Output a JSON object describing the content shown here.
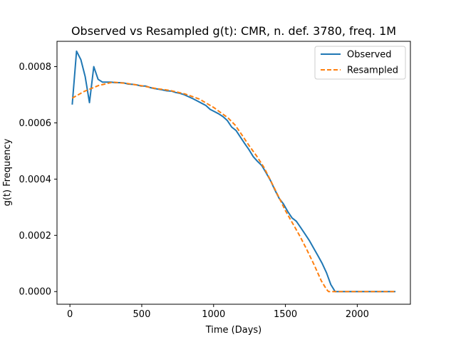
{
  "chart_data": {
    "type": "line",
    "title": "Observed vs Resampled g(t): CMR, n. def. 3780, freq. 1M",
    "xlabel": "Time (Days)",
    "ylabel": "g(t) Frequency",
    "xlim": [
      -90,
      2370
    ],
    "ylim": [
      -4.5e-05,
      0.00089
    ],
    "xticks": [
      0,
      500,
      1000,
      1500,
      2000
    ],
    "xtick_labels": [
      "0",
      "500",
      "1000",
      "1500",
      "2000"
    ],
    "yticks": [
      0.0,
      0.0002,
      0.0004,
      0.0006,
      0.0008
    ],
    "ytick_labels": [
      "0.0000",
      "0.0002",
      "0.0004",
      "0.0006",
      "0.0008"
    ],
    "grid": false,
    "legend_position": "top-right",
    "series": [
      {
        "name": "Observed",
        "color": "#1f77b4",
        "style": "solid",
        "x": [
          16,
          46,
          76,
          106,
          136,
          166,
          196,
          226,
          256,
          286,
          316,
          346,
          376,
          406,
          436,
          466,
          496,
          526,
          556,
          586,
          616,
          646,
          676,
          706,
          736,
          766,
          796,
          826,
          856,
          886,
          916,
          946,
          976,
          1006,
          1036,
          1066,
          1096,
          1126,
          1156,
          1186,
          1216,
          1246,
          1276,
          1306,
          1336,
          1366,
          1396,
          1426,
          1456,
          1486,
          1516,
          1546,
          1576,
          1606,
          1636,
          1666,
          1696,
          1726,
          1756,
          1786,
          1816,
          1846,
          1876,
          1906,
          1936,
          1966,
          1996,
          2026,
          2056,
          2086,
          2116,
          2146,
          2176,
          2206,
          2236,
          2266
        ],
        "y": [
          0.000665,
          0.000855,
          0.000825,
          0.000765,
          0.000672,
          0.0008,
          0.000755,
          0.000745,
          0.000745,
          0.000745,
          0.000743,
          0.000743,
          0.000742,
          0.000738,
          0.000737,
          0.000735,
          0.000731,
          0.000731,
          0.000726,
          0.000722,
          0.00072,
          0.000717,
          0.000714,
          0.000713,
          0.000708,
          0.000705,
          0.0007,
          0.000693,
          0.000686,
          0.000678,
          0.00067,
          0.000662,
          0.000648,
          0.00064,
          0.000632,
          0.000622,
          0.000608,
          0.000585,
          0.000573,
          0.00055,
          0.000527,
          0.000505,
          0.00048,
          0.000463,
          0.000448,
          0.000422,
          0.000395,
          0.000362,
          0.000332,
          0.000312,
          0.000285,
          0.000262,
          0.00025,
          0.000228,
          0.000205,
          0.000182,
          0.000155,
          0.000128,
          0.0001,
          6.7e-05,
          2.5e-05,
          0.0,
          0.0,
          0.0,
          0.0,
          0.0,
          0.0,
          0.0,
          0.0,
          0.0,
          0.0,
          0.0,
          0.0,
          0.0,
          0.0,
          0.0
        ]
      },
      {
        "name": "Resampled",
        "color": "#ff7f0e",
        "style": "dashed",
        "x": [
          16,
          100,
          200,
          300,
          400,
          500,
          600,
          700,
          800,
          900,
          1000,
          1100,
          1150,
          1200,
          1250,
          1300,
          1350,
          1400,
          1450,
          1500,
          1550,
          1600,
          1650,
          1700,
          1750,
          1786,
          1800,
          1900,
          2000,
          2100,
          2200,
          2266
        ],
        "y": [
          0.000688,
          0.000712,
          0.000733,
          0.000745,
          0.00074,
          0.000732,
          0.000722,
          0.000715,
          0.000703,
          0.000685,
          0.000655,
          0.000618,
          0.000592,
          0.000555,
          0.000517,
          0.000482,
          0.000442,
          0.000392,
          0.00034,
          0.000288,
          0.000243,
          0.000198,
          0.000148,
          9.5e-05,
          3.8e-05,
          8e-06,
          0.0,
          0.0,
          0.0,
          0.0,
          0.0,
          0.0
        ]
      }
    ]
  }
}
